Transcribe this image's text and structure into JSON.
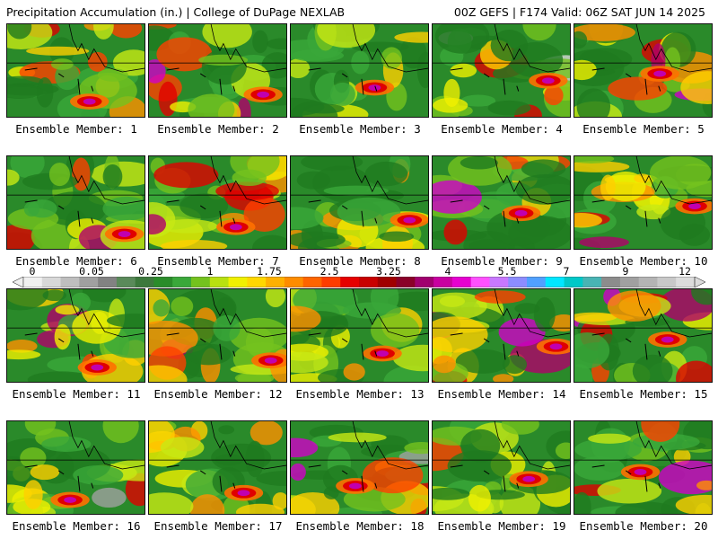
{
  "header": {
    "left_title": "Precipitation Accumulation (in.) | College of DuPage NEXLAB",
    "right_title": "00Z GEFS | F174 Valid: 06Z SAT JUN 14 2025"
  },
  "members": [
    {
      "label": "Ensemble Member: 1"
    },
    {
      "label": "Ensemble Member: 2"
    },
    {
      "label": "Ensemble Member: 3"
    },
    {
      "label": "Ensemble Member: 4"
    },
    {
      "label": "Ensemble Member: 5"
    },
    {
      "label": "Ensemble Member: 6"
    },
    {
      "label": "Ensemble Member: 7"
    },
    {
      "label": "Ensemble Member: 8"
    },
    {
      "label": "Ensemble Member: 9"
    },
    {
      "label": "Ensemble Member: 10"
    },
    {
      "label": "Ensemble Member: 11"
    },
    {
      "label": "Ensemble Member: 12"
    },
    {
      "label": "Ensemble Member: 13"
    },
    {
      "label": "Ensemble Member: 14"
    },
    {
      "label": "Ensemble Member: 15"
    },
    {
      "label": "Ensemble Member: 16"
    },
    {
      "label": "Ensemble Member: 17"
    },
    {
      "label": "Ensemble Member: 18"
    },
    {
      "label": "Ensemble Member: 19"
    },
    {
      "label": "Ensemble Member: 20"
    }
  ],
  "colorbar": {
    "labels": [
      "0",
      "0.05",
      "0.25",
      "1",
      "1.75",
      "2.5",
      "3.25",
      "4",
      "5.5",
      "7",
      "9",
      "12"
    ],
    "colors": [
      "#f0f0f0",
      "#d8d8d8",
      "#bebebe",
      "#a0a0a0",
      "#828282",
      "#5a8a5a",
      "#3c783c",
      "#2a8c2a",
      "#3aa83a",
      "#74c21e",
      "#b8e010",
      "#f0f000",
      "#ffd700",
      "#ffb000",
      "#ff8c00",
      "#ff6400",
      "#ff3c00",
      "#e60000",
      "#c80000",
      "#a00000",
      "#8a0028",
      "#a0006e",
      "#c800a0",
      "#e600d0",
      "#ff50ff",
      "#c878ff",
      "#8c8cff",
      "#50a0ff",
      "#00e6ff",
      "#00c8c8",
      "#48b4b4",
      "#8c8c8c",
      "#a0a0a0",
      "#b4b4b4",
      "#c8c8c8",
      "#dcdcdc"
    ]
  }
}
